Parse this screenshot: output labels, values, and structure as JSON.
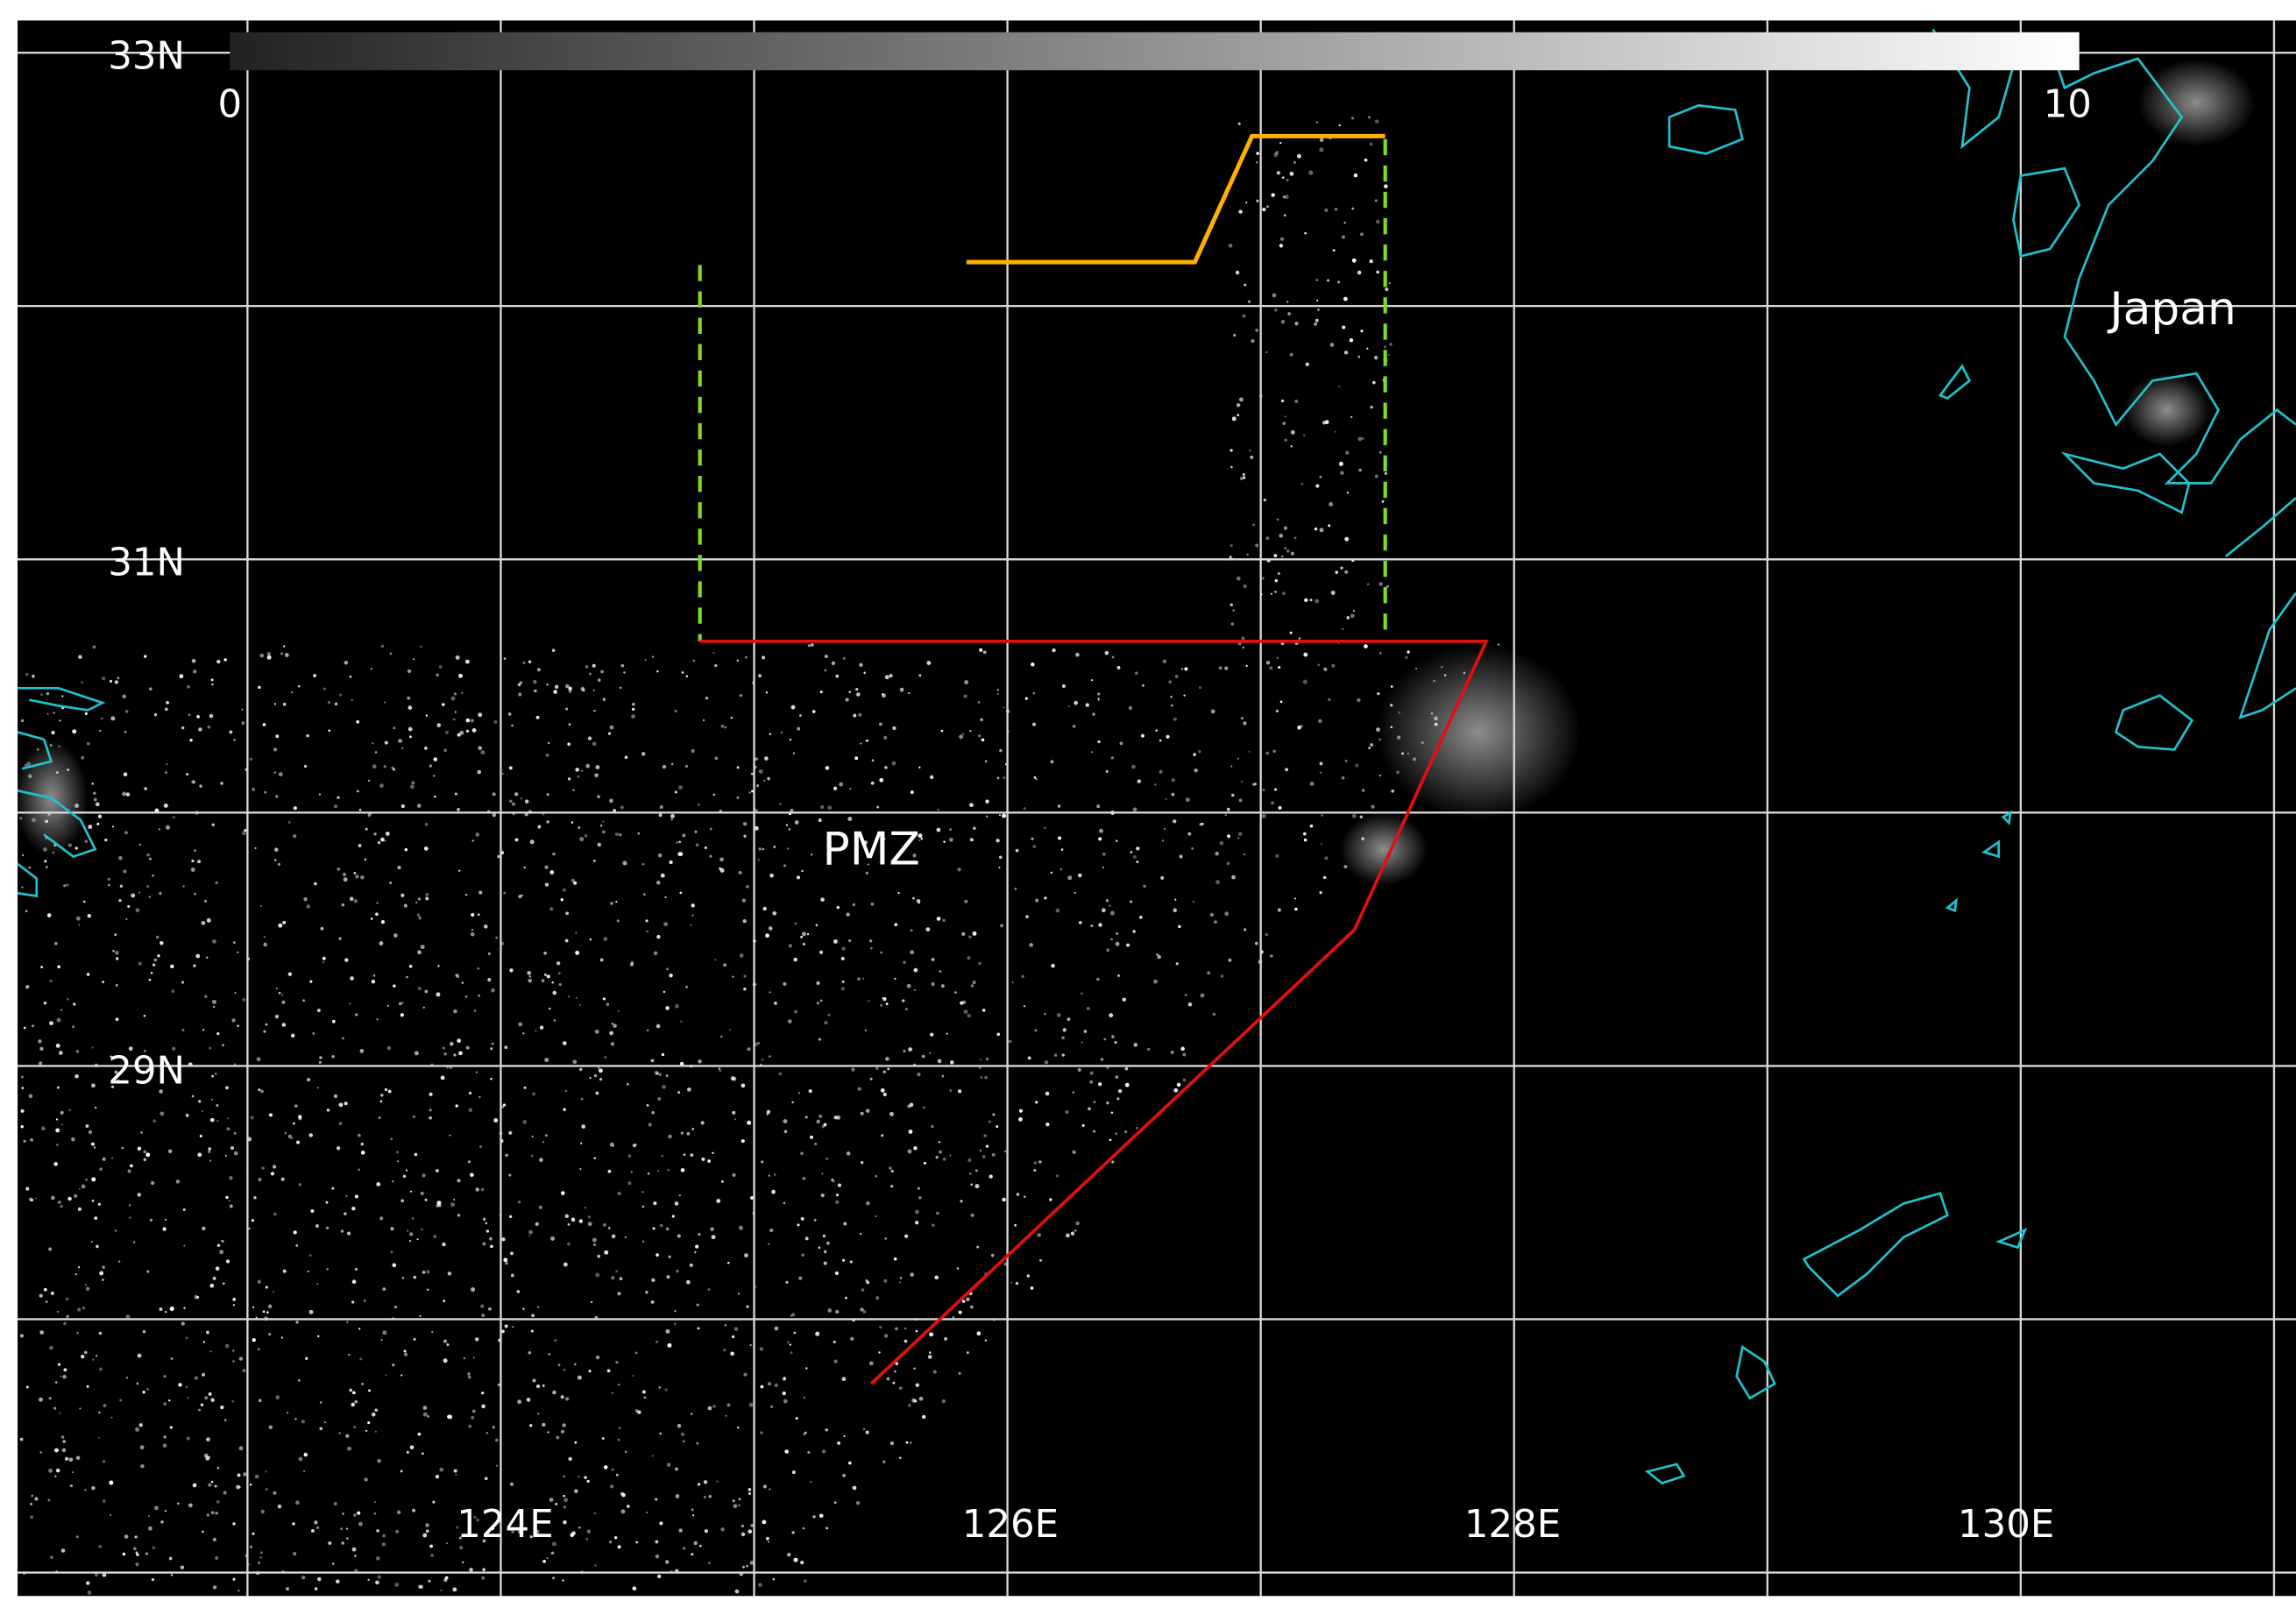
{
  "colorbar": {
    "min": 0,
    "max": 10
  },
  "lat_labels": [
    "33N",
    "31N",
    "29N"
  ],
  "lon_labels": [
    "124E",
    "126E",
    "128E",
    "130E"
  ],
  "region_labels": {
    "pmz": "PMZ",
    "japan": "Japan"
  }
}
